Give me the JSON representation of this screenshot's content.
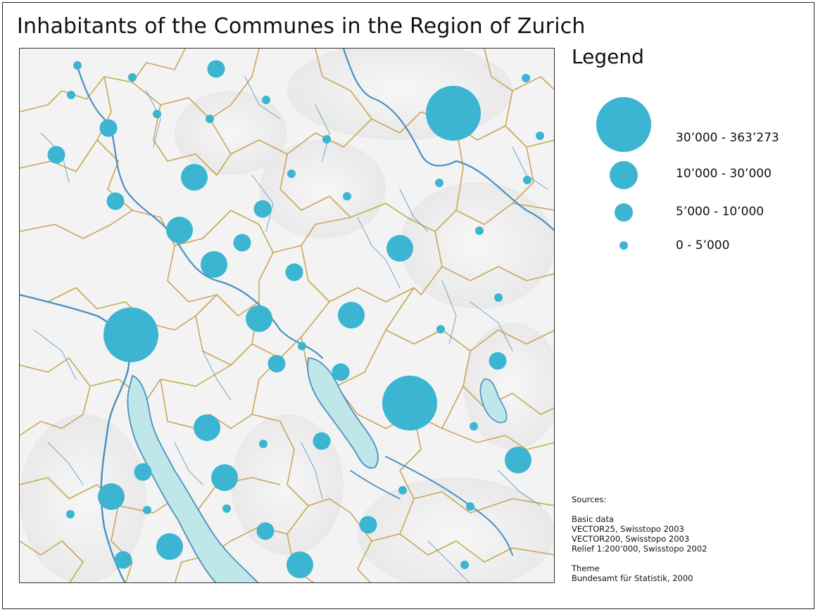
{
  "title": "Inhabitants of the Communes in the Region of Zurich",
  "legend": {
    "title": "Legend",
    "classes": [
      {
        "label": "30’000 - 363’273"
      },
      {
        "label": "10’000 - 30’000"
      },
      {
        "label": "5’000 - 10’000"
      },
      {
        "label": "0 - 5’000"
      }
    ]
  },
  "sources": {
    "heading": "Sources:",
    "basic_data_heading": "Basic data",
    "basic_data": [
      "VECTOR25, Swisstopo 2003",
      "VECTOR200, Swisstopo 2003",
      "Relief 1:200’000, Swisstopo 2002"
    ],
    "theme_heading": "Theme",
    "theme": "Bundesamt für Statistik, 2000"
  },
  "colors": {
    "symbol": "#3bb5d1",
    "lake": "#bfe6e8",
    "river": "#4a90c2",
    "border": "#c8a757",
    "relief": "#e9e9e9"
  },
  "icons": {
    "population_symbol": "circle"
  }
}
